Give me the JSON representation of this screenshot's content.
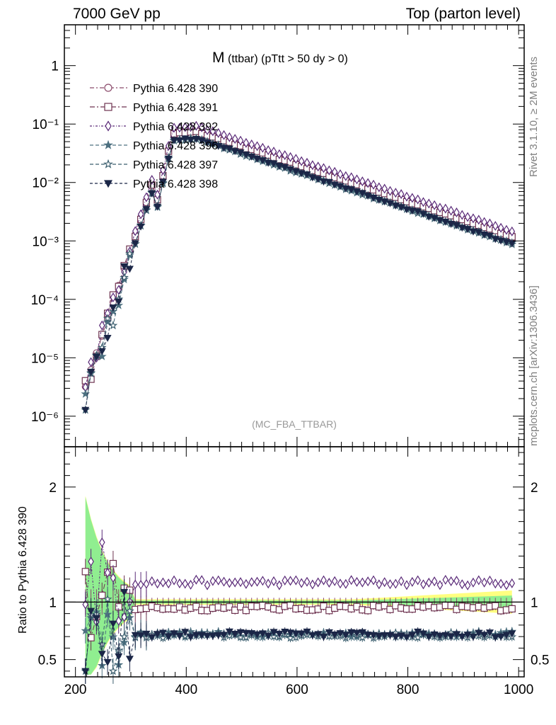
{
  "header": {
    "left": "7000 GeV pp",
    "right": "Top (parton level)"
  },
  "side": {
    "rivet": "Rivet 3.1.10, ≥ 2M events",
    "mcplots": "mcplots.cern.ch [arXiv:1306.3436]"
  },
  "chart_data": {
    "type": "line",
    "title_main": "M",
    "title_sub": "(ttbar) (pTtt > 50 dy > 0)",
    "watermark": "(MC_FBA_TTBAR)",
    "xlim": [
      180,
      1010
    ],
    "x_ticks": [
      {
        "value": 200,
        "label": "200"
      },
      {
        "value": 400,
        "label": "400"
      },
      {
        "value": 600,
        "label": "600"
      },
      {
        "value": 800,
        "label": "800"
      },
      {
        "value": 1000,
        "label": "1000"
      }
    ],
    "main": {
      "yscale": "log",
      "ylim": [
        3e-07,
        5
      ],
      "y_ticks": [
        {
          "value": 1,
          "label": "1"
        },
        {
          "value": 0.1,
          "label": "10⁻¹"
        },
        {
          "value": 0.01,
          "label": "10⁻²"
        },
        {
          "value": 0.001,
          "label": "10⁻³"
        },
        {
          "value": 0.0001,
          "label": "10⁻⁴"
        },
        {
          "value": 1e-05,
          "label": "10⁻⁵"
        },
        {
          "value": 1e-06,
          "label": "10⁻⁶"
        }
      ]
    },
    "ratio": {
      "ylabel": "Ratio to Pythia 6.428 390",
      "ylim": [
        0.35,
        2.35
      ],
      "y_ticks": [
        {
          "value": 0.5,
          "label": "0.5"
        },
        {
          "value": 1,
          "label": "1"
        },
        {
          "value": 2,
          "label": "2"
        }
      ]
    },
    "legend_position": "top-left",
    "series": [
      {
        "name": "Pythia 6.428 390",
        "color": "#8b4a6b",
        "marker": "circle-open",
        "dash": "6,3,2,3",
        "ratio": 1.0
      },
      {
        "name": "Pythia 6.428 391",
        "color": "#6e3350",
        "marker": "square-open",
        "dash": "7,3,2,3",
        "ratio": 0.95
      },
      {
        "name": "Pythia 6.428 392",
        "color": "#5a2a78",
        "marker": "diamond-open",
        "dash": "3,2,1,2",
        "ratio": 1.17
      },
      {
        "name": "Pythia 6.428 396",
        "color": "#4d7080",
        "marker": "star-filled",
        "dash": "5,3",
        "ratio": 0.72
      },
      {
        "name": "Pythia 6.428 397",
        "color": "#3b5e6e",
        "marker": "star-open",
        "dash": "5,3",
        "ratio": 0.71
      },
      {
        "name": "Pythia 6.428 398",
        "color": "#1b2647",
        "marker": "triangle-down-filled",
        "dash": "4,3",
        "ratio": 0.72
      }
    ]
  }
}
